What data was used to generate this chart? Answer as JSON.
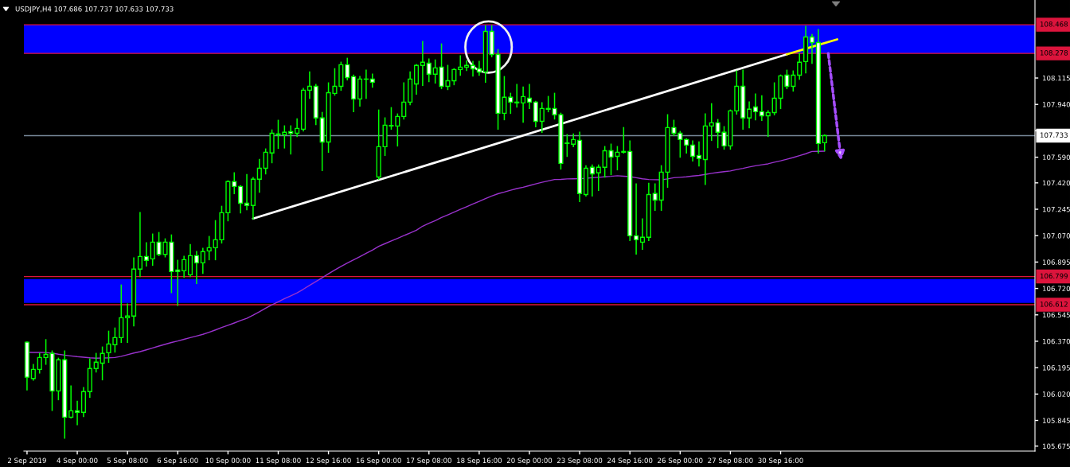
{
  "chart_data": {
    "type": "candlestick",
    "title": "USDJPY,H4 107.686 107.737 107.633 107.733",
    "categories": [
      "2 Sep 2019",
      null,
      null,
      null,
      null,
      null,
      null,
      null,
      "4 Sep 00:00",
      null,
      null,
      null,
      null,
      null,
      null,
      null,
      "5 Sep 08:00",
      null,
      null,
      null,
      null,
      null,
      null,
      null,
      "6 Sep 16:00",
      null,
      null,
      null,
      null,
      null,
      null,
      null,
      "10 Sep 00:00",
      null,
      null,
      null,
      null,
      null,
      null,
      null,
      "11 Sep 08:00",
      null,
      null,
      null,
      null,
      null,
      null,
      null,
      "12 Sep 16:00",
      null,
      null,
      null,
      null,
      null,
      null,
      null,
      "16 Sep 00:00",
      null,
      null,
      null,
      null,
      null,
      null,
      null,
      "17 Sep 08:00",
      null,
      null,
      null,
      null,
      null,
      null,
      null,
      "18 Sep 16:00",
      null,
      null,
      null,
      null,
      null,
      null,
      null,
      "20 Sep 00:00",
      null,
      null,
      null,
      null,
      null,
      null,
      null,
      "23 Sep 08:00",
      null,
      null,
      null,
      null,
      null,
      null,
      null,
      "24 Sep 16:00",
      null,
      null,
      null,
      null,
      null,
      null,
      null,
      "26 Sep 00:00",
      null,
      null,
      null,
      null,
      null,
      null,
      null,
      "27 Sep 08:00",
      null,
      null,
      null,
      null,
      null,
      null,
      null,
      "30 Sep 16:00",
      null,
      null,
      null,
      null,
      null,
      null,
      null,
      null,
      null,
      null,
      null,
      null,
      null,
      null,
      null,
      null,
      null,
      null,
      null,
      null,
      null,
      null,
      null,
      null,
      null,
      null,
      null,
      null,
      null,
      null,
      null,
      null,
      null,
      null,
      null,
      null,
      null,
      null,
      null,
      null
    ],
    "ohlc": [
      [
        106.364,
        106.364,
        106.048,
        106.132
      ],
      [
        106.123,
        106.215,
        106.113,
        106.183
      ],
      [
        106.183,
        106.289,
        106.16,
        106.262
      ],
      [
        106.262,
        106.38,
        106.218,
        106.283
      ],
      [
        106.289,
        106.305,
        105.912,
        106.041
      ],
      [
        106.041,
        106.257,
        105.983,
        106.247
      ],
      [
        106.247,
        106.305,
        105.728,
        105.867
      ],
      [
        105.867,
        106.073,
        105.862,
        105.909
      ],
      [
        105.909,
        105.972,
        105.817,
        105.899
      ],
      [
        105.899,
        106.062,
        105.872,
        106.036
      ],
      [
        106.036,
        106.252,
        105.999,
        106.189
      ],
      [
        106.189,
        106.289,
        106.167,
        106.231
      ],
      [
        106.225,
        106.331,
        106.115,
        106.289
      ],
      [
        106.294,
        106.436,
        106.231,
        106.352
      ],
      [
        106.347,
        106.457,
        106.299,
        106.394
      ],
      [
        106.394,
        106.742,
        106.363,
        106.526
      ],
      [
        106.526,
        106.616,
        106.363,
        106.537
      ],
      [
        106.537,
        106.922,
        106.473,
        106.848
      ],
      [
        106.848,
        107.222,
        106.8,
        106.932
      ],
      [
        106.932,
        107.022,
        106.869,
        106.906
      ],
      [
        106.916,
        107.08,
        106.874,
        107.027
      ],
      [
        107.027,
        107.09,
        106.939,
        106.946
      ],
      [
        106.946,
        107.048,
        106.93,
        107.027
      ],
      [
        107.027,
        107.074,
        106.693,
        106.832
      ],
      [
        106.842,
        106.906,
        106.608,
        106.832
      ],
      [
        106.837,
        106.932,
        106.795,
        106.911
      ],
      [
        106.811,
        107.011,
        106.8,
        106.937
      ],
      [
        106.937,
        106.964,
        106.753,
        106.89
      ],
      [
        106.89,
        106.985,
        106.821,
        106.964
      ],
      [
        106.969,
        107.064,
        106.911,
        106.99
      ],
      [
        106.99,
        107.169,
        106.911,
        107.043
      ],
      [
        107.043,
        107.264,
        107.022,
        107.222
      ],
      [
        107.222,
        107.433,
        107.169,
        107.428
      ],
      [
        107.428,
        107.486,
        107.349,
        107.396
      ],
      [
        107.396,
        107.401,
        107.222,
        107.285
      ],
      [
        107.285,
        107.475,
        107.243,
        107.27
      ],
      [
        107.27,
        107.454,
        107.18,
        107.444
      ],
      [
        107.444,
        107.575,
        107.359,
        107.517
      ],
      [
        107.517,
        107.644,
        107.48,
        107.623
      ],
      [
        107.618,
        107.77,
        107.554,
        107.749
      ],
      [
        107.739,
        107.834,
        107.649,
        107.744
      ],
      [
        107.739,
        107.797,
        107.652,
        107.755
      ],
      [
        107.76,
        107.797,
        107.612,
        107.749
      ],
      [
        107.749,
        107.844,
        107.728,
        107.781
      ],
      [
        107.776,
        108.045,
        107.765,
        108.034
      ],
      [
        108.034,
        108.155,
        107.981,
        108.06
      ],
      [
        108.06,
        108.071,
        107.807,
        107.85
      ],
      [
        107.85,
        107.886,
        107.502,
        107.691
      ],
      [
        107.691,
        108.082,
        107.623,
        108.018
      ],
      [
        108.013,
        108.176,
        108.002,
        108.06
      ],
      [
        108.06,
        108.219,
        108.034,
        108.203
      ],
      [
        108.203,
        108.245,
        108.103,
        108.118
      ],
      [
        108.124,
        108.134,
        107.892,
        107.976
      ],
      [
        107.976,
        108.124,
        107.929,
        108.108
      ],
      [
        108.107,
        108.166,
        107.981,
        108.108
      ],
      [
        108.108,
        108.14,
        108.055,
        108.087
      ],
      [
        107.459,
        107.902,
        107.445,
        107.66
      ],
      [
        107.66,
        107.85,
        107.602,
        107.802
      ],
      [
        107.797,
        107.918,
        107.776,
        107.8
      ],
      [
        107.797,
        107.876,
        107.665,
        107.86
      ],
      [
        107.86,
        108.082,
        107.844,
        107.955
      ],
      [
        107.955,
        108.155,
        107.939,
        108.108
      ],
      [
        108.076,
        108.203,
        108.008,
        108.198
      ],
      [
        108.198,
        108.357,
        108.066,
        108.219
      ],
      [
        108.213,
        108.24,
        108.092,
        108.14
      ],
      [
        108.14,
        108.234,
        108.082,
        108.182
      ],
      [
        108.187,
        108.34,
        108.045,
        108.06
      ],
      [
        108.06,
        108.198,
        108.039,
        108.097
      ],
      [
        108.097,
        108.176,
        108.071,
        108.171
      ],
      [
        108.171,
        108.261,
        108.134,
        108.187
      ],
      [
        108.187,
        108.229,
        108.166,
        108.198
      ],
      [
        108.198,
        108.224,
        108.129,
        108.176
      ],
      [
        108.176,
        108.224,
        108.134,
        108.155
      ],
      [
        108.155,
        108.461,
        108.087,
        108.424
      ],
      [
        108.424,
        108.461,
        108.256,
        108.271
      ],
      [
        108.271,
        108.303,
        107.776,
        107.881
      ],
      [
        107.881,
        108.124,
        107.839,
        107.987
      ],
      [
        107.987,
        108.013,
        107.881,
        107.955
      ],
      [
        107.95,
        108.071,
        107.923,
        107.955
      ],
      [
        107.95,
        108.055,
        107.823,
        107.992
      ],
      [
        107.981,
        108.071,
        107.913,
        107.955
      ],
      [
        107.955,
        107.96,
        107.792,
        107.828
      ],
      [
        107.828,
        107.95,
        107.755,
        107.913
      ],
      [
        107.908,
        107.992,
        107.892,
        107.913
      ],
      [
        107.913,
        108.013,
        107.844,
        107.871
      ],
      [
        107.871,
        107.881,
        107.512,
        107.549
      ],
      [
        107.681,
        107.739,
        107.596,
        107.684
      ],
      [
        107.676,
        107.744,
        107.66,
        107.707
      ],
      [
        107.702,
        107.755,
        107.296,
        107.349
      ],
      [
        107.343,
        107.533,
        107.333,
        107.517
      ],
      [
        107.523,
        107.538,
        107.333,
        107.48
      ],
      [
        107.486,
        107.538,
        107.37,
        107.523
      ],
      [
        107.523,
        107.66,
        107.459,
        107.633
      ],
      [
        107.633,
        107.676,
        107.475,
        107.591
      ],
      [
        107.596,
        107.66,
        107.507,
        107.623
      ],
      [
        107.623,
        107.786,
        107.618,
        107.628
      ],
      [
        107.628,
        107.697,
        107.038,
        107.069
      ],
      [
        107.069,
        107.412,
        106.948,
        107.043
      ],
      [
        107.027,
        107.18,
        106.98,
        107.059
      ],
      [
        107.059,
        107.417,
        107.038,
        107.343
      ],
      [
        107.349,
        107.412,
        107.238,
        107.306
      ],
      [
        107.306,
        107.533,
        107.238,
        107.491
      ],
      [
        107.491,
        107.871,
        107.391,
        107.786
      ],
      [
        107.786,
        107.834,
        107.734,
        107.749
      ],
      [
        107.749,
        107.76,
        107.591,
        107.707
      ],
      [
        107.707,
        107.712,
        107.618,
        107.67
      ],
      [
        107.67,
        107.697,
        107.565,
        107.596
      ],
      [
        107.602,
        107.691,
        107.533,
        107.581
      ],
      [
        107.575,
        107.876,
        107.41,
        107.797
      ],
      [
        107.797,
        107.944,
        107.702,
        107.818
      ],
      [
        107.818,
        107.839,
        107.654,
        107.755
      ],
      [
        107.755,
        107.792,
        107.644,
        107.665
      ],
      [
        107.665,
        107.902,
        107.644,
        107.897
      ],
      [
        107.897,
        108.161,
        107.876,
        108.06
      ],
      [
        108.06,
        108.166,
        107.776,
        107.85
      ],
      [
        107.85,
        107.955,
        107.786,
        107.908
      ],
      [
        107.923,
        108.008,
        107.839,
        107.892
      ],
      [
        107.892,
        107.997,
        107.834,
        107.865
      ],
      [
        107.865,
        107.897,
        107.728,
        107.886
      ],
      [
        107.886,
        108.082,
        107.871,
        107.981
      ],
      [
        107.981,
        108.134,
        107.913,
        108.129
      ],
      [
        108.134,
        108.166,
        108.045,
        108.06
      ],
      [
        108.06,
        108.161,
        108.029,
        108.134
      ],
      [
        108.134,
        108.277,
        108.108,
        108.219
      ],
      [
        108.224,
        108.456,
        108.15,
        108.387
      ],
      [
        108.387,
        108.403,
        108.213,
        108.35
      ],
      [
        108.35,
        108.435,
        107.618,
        107.681
      ],
      [
        107.686,
        107.737,
        107.633,
        107.733
      ],
      null,
      null,
      null,
      null,
      null,
      null,
      null,
      null,
      null,
      null,
      null,
      null,
      null,
      null,
      null,
      null,
      null,
      null,
      null,
      null,
      null,
      null,
      null,
      null,
      null,
      null,
      null,
      null,
      null,
      null,
      null,
      null,
      null
    ],
    "color": "#00ff00",
    "colors": [
      "#ffffff",
      "#000000",
      "#000000",
      "#000000",
      "#ffffff",
      "#000000",
      "#ffffff",
      "#000000",
      "#ffffff",
      "#000000",
      "#000000",
      "#000000",
      "#000000",
      "#000000",
      "#000000",
      "#000000",
      "#000000",
      "#000000",
      "#000000",
      "#ffffff",
      "#000000",
      "#ffffff",
      "#000000",
      "#ffffff",
      "#ffffff",
      "#000000",
      "#000000",
      "#ffffff",
      "#000000",
      "#000000",
      "#000000",
      "#000000",
      "#000000",
      "#ffffff",
      "#ffffff",
      "#ffffff",
      "#000000",
      "#000000",
      "#000000",
      "#000000",
      "#000000",
      "#000000",
      "#ffffff",
      "#000000",
      "#000000",
      "#000000",
      "#ffffff",
      "#ffffff",
      "#000000",
      "#000000",
      "#000000",
      "#ffffff",
      "#ffffff",
      "#000000",
      "#000000",
      "#ffffff",
      "#000000",
      "#000000",
      "#000000",
      "#000000",
      "#000000",
      "#000000",
      "#000000",
      "#000000",
      "#ffffff",
      "#000000",
      "#ffffff",
      "#000000",
      "#000000",
      "#000000",
      "#000000",
      "#ffffff",
      "#ffffff",
      "#000000",
      "#ffffff",
      "#ffffff",
      "#000000",
      "#ffffff",
      "#000000",
      "#000000",
      "#ffffff",
      "#ffffff",
      "#000000",
      "#000000",
      "#ffffff",
      "#ffffff",
      "#000000",
      "#000000",
      "#ffffff",
      "#000000",
      "#ffffff",
      "#000000",
      "#000000",
      "#ffffff",
      "#000000",
      "#000000",
      "#ffffff",
      "#ffffff",
      "#000000",
      "#000000",
      "#ffffff",
      "#000000",
      "#000000",
      "#ffffff",
      "#ffffff",
      "#ffffff",
      "#ffffff",
      "#ffffff",
      "#000000",
      "#000000",
      "#ffffff",
      "#ffffff",
      "#000000",
      "#000000",
      "#ffffff",
      "#000000",
      "#ffffff",
      "#ffffff",
      "#000000",
      "#000000",
      "#000000",
      "#ffffff",
      "#000000",
      "#000000",
      "#000000",
      "#ffffff",
      "#ffffff",
      "#000000",
      null,
      null,
      null,
      null,
      null,
      null,
      null,
      null,
      null,
      null,
      null,
      null,
      null,
      null,
      null,
      null,
      null,
      null,
      null,
      null,
      null,
      null,
      null,
      null,
      null,
      null,
      null,
      null,
      null,
      null,
      null,
      null,
      null
    ],
    "series": [
      {
        "type": "line",
        "color": "#9932cc",
        "values": [
          106.297,
          106.296,
          106.296,
          106.295,
          106.291,
          106.284,
          106.278,
          106.273,
          106.268,
          106.264,
          106.26,
          106.258,
          106.259,
          106.26,
          106.262,
          106.27,
          106.281,
          106.292,
          106.301,
          106.313,
          106.326,
          106.338,
          106.35,
          106.362,
          106.372,
          106.383,
          106.394,
          106.405,
          106.416,
          106.43,
          106.445,
          106.461,
          106.476,
          106.491,
          106.507,
          106.522,
          106.543,
          106.566,
          106.589,
          106.612,
          106.631,
          106.652,
          106.671,
          106.691,
          106.715,
          106.741,
          106.766,
          106.791,
          106.817,
          106.842,
          106.866,
          106.888,
          106.909,
          106.931,
          106.953,
          106.974,
          106.999,
          107.017,
          107.035,
          107.052,
          107.07,
          107.088,
          107.106,
          107.133,
          107.152,
          107.169,
          107.19,
          107.208,
          107.226,
          107.244,
          107.262,
          107.28,
          107.297,
          107.316,
          107.333,
          107.348,
          107.359,
          107.371,
          107.382,
          107.391,
          107.402,
          107.413,
          107.424,
          107.433,
          107.442,
          107.443,
          107.446,
          107.447,
          107.448,
          107.45,
          107.454,
          107.457,
          107.46,
          107.463,
          107.467,
          107.464,
          107.461,
          107.454,
          107.447,
          107.442,
          107.441,
          107.44,
          107.446,
          107.454,
          107.457,
          107.46,
          107.465,
          107.469,
          107.476,
          107.483,
          107.489,
          107.494,
          107.499,
          107.508,
          107.516,
          107.525,
          107.533,
          107.54,
          107.546,
          107.557,
          107.566,
          107.577,
          107.588,
          107.6,
          107.613,
          107.628,
          107.629,
          107.63,
          null,
          null,
          null,
          null,
          null,
          null,
          null,
          null,
          null,
          null,
          null,
          null,
          null,
          null,
          null,
          null,
          null,
          null,
          null,
          null,
          null,
          null,
          null,
          null,
          null,
          null,
          null,
          null,
          null,
          null,
          null,
          null,
          null
        ]
      },
      {
        "type": "line",
        "color": "#ffffff",
        "values": [
          null,
          null,
          null,
          null,
          null,
          null,
          null,
          null,
          null,
          null,
          null,
          null,
          null,
          null,
          null,
          null,
          null,
          null,
          null,
          null,
          null,
          null,
          null,
          null,
          null,
          null,
          null,
          null,
          null,
          null,
          null,
          null,
          null,
          null,
          null,
          null,
          107.183,
          null,
          null,
          null,
          null,
          null,
          null,
          null,
          null,
          null,
          null,
          null,
          null,
          null,
          null,
          null,
          null,
          null,
          null,
          null,
          null,
          null,
          null,
          null,
          null,
          null,
          null,
          null,
          null,
          null,
          null,
          null,
          null,
          null,
          null,
          null,
          null,
          null,
          null,
          null,
          null,
          null,
          null,
          null,
          null,
          null,
          null,
          null,
          null,
          null,
          null,
          null,
          null,
          null,
          null,
          null,
          null,
          null,
          null,
          null,
          null,
          null,
          null,
          null,
          null,
          null,
          null,
          null,
          null,
          null,
          null,
          null,
          null,
          null,
          null,
          null,
          null,
          null,
          null,
          null,
          null,
          null,
          null,
          null,
          null,
          108.272,
          null,
          null,
          null,
          null,
          null,
          null,
          null,
          null,
          null,
          null,
          null,
          null,
          null,
          null,
          null,
          null,
          null,
          null,
          null,
          null,
          null,
          null,
          null,
          null,
          null,
          null,
          null,
          null,
          null,
          null,
          null,
          null,
          null,
          null,
          null,
          null,
          null,
          null,
          null
        ]
      },
      {
        "type": "line",
        "color": "#ffff00",
        "values": [
          null,
          null,
          null,
          null,
          null,
          null,
          null,
          null,
          null,
          null,
          null,
          null,
          null,
          null,
          null,
          null,
          null,
          null,
          null,
          null,
          null,
          null,
          null,
          null,
          null,
          null,
          null,
          null,
          null,
          null,
          null,
          null,
          null,
          null,
          null,
          null,
          null,
          null,
          null,
          null,
          null,
          null,
          null,
          null,
          null,
          null,
          null,
          null,
          null,
          null,
          null,
          null,
          null,
          null,
          null,
          null,
          null,
          null,
          null,
          null,
          null,
          null,
          null,
          null,
          null,
          null,
          null,
          null,
          null,
          null,
          null,
          null,
          null,
          null,
          null,
          null,
          null,
          null,
          null,
          null,
          null,
          null,
          null,
          null,
          null,
          null,
          null,
          null,
          null,
          null,
          null,
          null,
          null,
          null,
          null,
          null,
          null,
          null,
          null,
          null,
          null,
          null,
          null,
          null,
          null,
          null,
          null,
          null,
          null,
          null,
          null,
          null,
          null,
          null,
          null,
          null,
          null,
          null,
          null,
          null,
          null,
          108.272,
          null,
          null,
          null,
          null,
          null,
          null,
          null,
          108.371,
          null,
          null,
          null,
          null,
          null,
          null,
          null,
          null,
          null,
          null,
          null,
          null,
          null,
          null,
          null,
          null,
          null,
          null,
          null,
          null,
          null,
          null,
          null,
          null,
          null,
          null,
          null,
          null,
          null,
          null,
          null
        ]
      }
    ],
    "ylim": [
      105.642,
      108.632
    ],
    "yticks": [
      108.115,
      {
        "value": 107.94,
        "label": "107.940"
      },
      {
        "value": 107.765,
        "label": null
      },
      {
        "value": 107.59,
        "label": "107.590"
      },
      {
        "value": 107.42,
        "label": "107.420"
      },
      107.245,
      {
        "value": 107.07,
        "label": "107.070"
      },
      106.895,
      {
        "value": 106.72,
        "label": "106.720"
      },
      106.545,
      {
        "value": 106.37,
        "label": "106.370"
      },
      106.195,
      {
        "value": 106.02,
        "label": "106.020"
      },
      105.845,
      105.675
    ],
    "ref_lines": [
      {
        "axis": "y",
        "value": 108.468,
        "label": "108.468",
        "color": "#dc143c"
      },
      {
        "axis": "y",
        "value": 108.278,
        "label": "108.278",
        "color": "#dc143c"
      },
      {
        "axis": "y",
        "value": 107.733,
        "label": "107.733",
        "color": "#778899"
      },
      {
        "axis": "y",
        "value": 106.799,
        "label": "106.799",
        "color": "#dc143c"
      },
      {
        "axis": "y",
        "value": 106.612,
        "label": "106.612",
        "color": "#dc143c"
      }
    ],
    "bands": [
      {
        "axis": "y",
        "from": 108.278,
        "to": 108.468,
        "color": "#0000ff"
      },
      {
        "axis": "y",
        "from": 106.624,
        "to": 106.782,
        "color": "#0000ff"
      }
    ]
  }
}
